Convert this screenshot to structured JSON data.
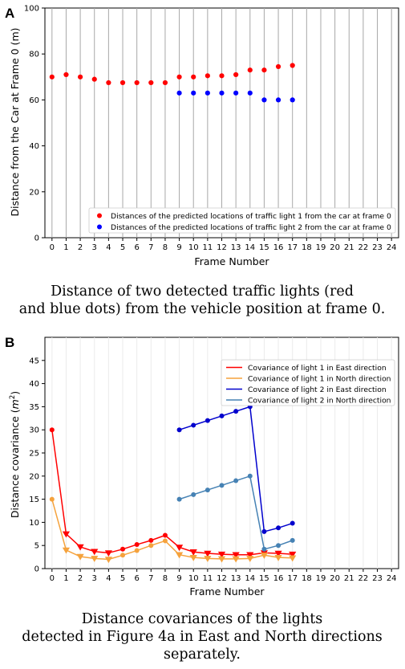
{
  "chart_data": [
    {
      "type": "scatter",
      "panel_label": "A",
      "xlabel": "Frame Number",
      "ylabel": "Distance from the Car at Frame 0 (m)",
      "xlim": [
        0,
        24
      ],
      "ylim": [
        0,
        100
      ],
      "x_ticks": [
        0,
        1,
        2,
        3,
        4,
        5,
        6,
        7,
        8,
        9,
        10,
        11,
        12,
        13,
        14,
        15,
        16,
        17,
        18,
        19,
        20,
        21,
        22,
        23,
        24
      ],
      "y_ticks": [
        0,
        20,
        40,
        60,
        80,
        100
      ],
      "grid": "vertical",
      "legend_position": "lower-right",
      "series": [
        {
          "name": "Distances of the predicted locations of traffic light 1 from the car at frame 0",
          "color": "#ff0000",
          "marker": "circle",
          "x": [
            0,
            1,
            2,
            3,
            4,
            5,
            6,
            7,
            8,
            9,
            10,
            11,
            12,
            13,
            14,
            15,
            16,
            17
          ],
          "y": [
            70,
            71,
            70,
            69,
            67.5,
            67.5,
            67.5,
            67.5,
            67.5,
            70,
            70,
            70.5,
            70.5,
            71,
            73,
            73,
            74.5,
            75
          ]
        },
        {
          "name": "Distances of the predicted locations of traffic light 2 from the car at frame 0",
          "color": "#0000ff",
          "marker": "circle",
          "x": [
            9,
            10,
            11,
            12,
            13,
            14,
            15,
            16,
            17
          ],
          "y": [
            63,
            63,
            63,
            63,
            63,
            63,
            60,
            60,
            60
          ]
        }
      ],
      "caption": [
        "Distance of two detected traffic lights (red",
        "and blue dots) from the vehicle position at frame 0."
      ]
    },
    {
      "type": "line",
      "panel_label": "B",
      "xlabel": "Frame Number",
      "ylabel_main": "Distance covariance (",
      "ylabel_unit": "m",
      "ylabel_sup": "2",
      "ylabel_end": ")",
      "xlim": [
        0,
        24
      ],
      "ylim": [
        0,
        50
      ],
      "x_ticks": [
        0,
        1,
        2,
        3,
        4,
        5,
        6,
        7,
        8,
        9,
        10,
        11,
        12,
        13,
        14,
        15,
        16,
        17,
        18,
        19,
        20,
        21,
        22,
        23,
        24
      ],
      "y_ticks": [
        0,
        5,
        10,
        15,
        20,
        25,
        30,
        35,
        40,
        45
      ],
      "grid": "vertical",
      "legend_position": "top-right",
      "series": [
        {
          "name": "Covariance of light 1 in East direction",
          "color": "#ff0000",
          "x": [
            0,
            1,
            2,
            3,
            4,
            5,
            6,
            7,
            8,
            9,
            10,
            11,
            12,
            13,
            14,
            15,
            16,
            17
          ],
          "y": [
            30,
            7.5,
            4.7,
            3.7,
            3.4,
            4.2,
            5.2,
            6.1,
            7.2,
            4.6,
            3.6,
            3.3,
            3.1,
            3.0,
            3.0,
            3.4,
            3.3,
            3.1
          ],
          "markers": [
            "circle",
            "triangle",
            "triangle",
            "triangle",
            "triangle",
            "circle",
            "circle",
            "circle",
            "circle",
            "triangle",
            "triangle",
            "triangle",
            "triangle",
            "triangle",
            "triangle",
            "triangle",
            "triangle",
            "triangle"
          ]
        },
        {
          "name": "Covariance of light 1 in North direction",
          "color": "#f5a23c",
          "x": [
            0,
            1,
            2,
            3,
            4,
            5,
            6,
            7,
            8,
            9,
            10,
            11,
            12,
            13,
            14,
            15,
            16,
            17
          ],
          "y": [
            15,
            4.0,
            2.6,
            2.2,
            2.0,
            2.9,
            3.9,
            5.0,
            6.0,
            3.0,
            2.4,
            2.2,
            2.1,
            2.1,
            2.2,
            2.9,
            2.4,
            2.3
          ],
          "markers": [
            "circle",
            "triangle",
            "triangle",
            "triangle",
            "triangle",
            "circle",
            "circle",
            "circle",
            "circle",
            "triangle",
            "triangle",
            "triangle",
            "triangle",
            "triangle",
            "triangle",
            "triangle",
            "triangle",
            "triangle"
          ]
        },
        {
          "name": "Covariance of light 2 in East direction",
          "color": "#0000cd",
          "x": [
            9,
            10,
            11,
            12,
            13,
            14,
            15,
            16,
            17
          ],
          "y": [
            30,
            31,
            32,
            33,
            34,
            35,
            8,
            8.8,
            9.8
          ],
          "markers": [
            "circle",
            "circle",
            "circle",
            "circle",
            "circle",
            "circle",
            "circle",
            "circle",
            "circle"
          ]
        },
        {
          "name": "Covariance of light 2 in North direction",
          "color": "#4682b4",
          "x": [
            9,
            10,
            11,
            12,
            13,
            14,
            15,
            16,
            17
          ],
          "y": [
            15,
            16,
            17,
            18,
            19,
            20,
            4.2,
            5.0,
            6.1
          ],
          "markers": [
            "circle",
            "circle",
            "circle",
            "circle",
            "circle",
            "circle",
            "circle",
            "circle",
            "circle"
          ]
        }
      ],
      "caption": [
        "Distance covariances of the lights",
        "detected in Figure 4a in East and North directions",
        "separately."
      ]
    }
  ]
}
